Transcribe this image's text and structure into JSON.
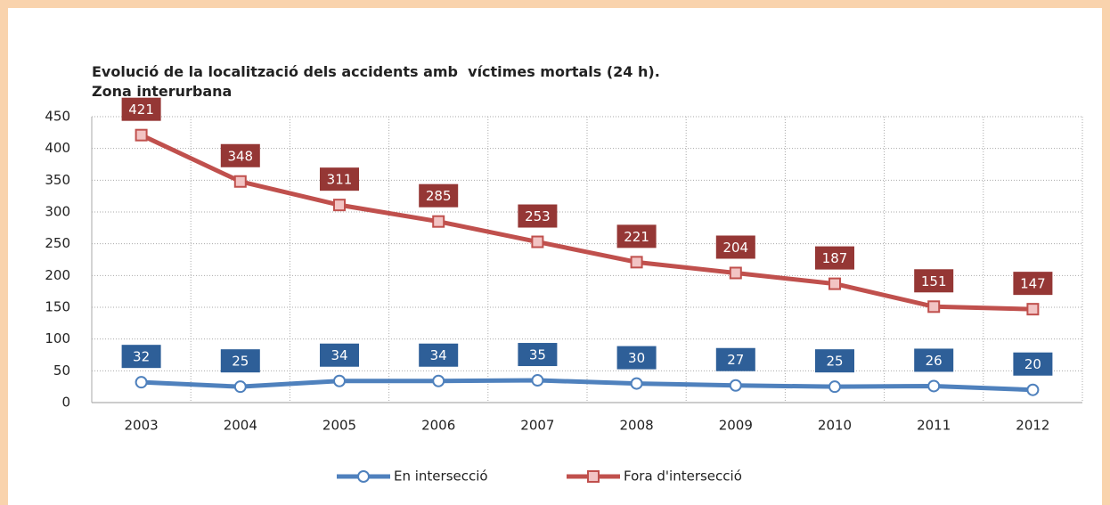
{
  "chart_data": {
    "type": "line",
    "title": [
      "Evolució de la localització dels accidents amb  víctimes mortals (24 h).",
      "Zona interurbana"
    ],
    "categories": [
      "2003",
      "2004",
      "2005",
      "2006",
      "2007",
      "2008",
      "2009",
      "2010",
      "2011",
      "2012"
    ],
    "series": [
      {
        "name": "En intersecció",
        "color": "#4f81bd",
        "label_color": "#2e5f98",
        "marker": "circle",
        "marker_fill": "#ffffff",
        "values": [
          32,
          25,
          34,
          34,
          35,
          30,
          27,
          25,
          26,
          20
        ]
      },
      {
        "name": "Fora d'intersecció",
        "color": "#c0504d",
        "label_color": "#953735",
        "marker": "square",
        "marker_fill": "#f2c4c4",
        "values": [
          421,
          348,
          311,
          285,
          253,
          221,
          204,
          187,
          151,
          147
        ]
      }
    ],
    "ylim": [
      0,
      450
    ],
    "yticks": [
      0,
      50,
      100,
      150,
      200,
      250,
      300,
      350,
      400,
      450
    ],
    "grid": true,
    "legend": "bottom"
  }
}
